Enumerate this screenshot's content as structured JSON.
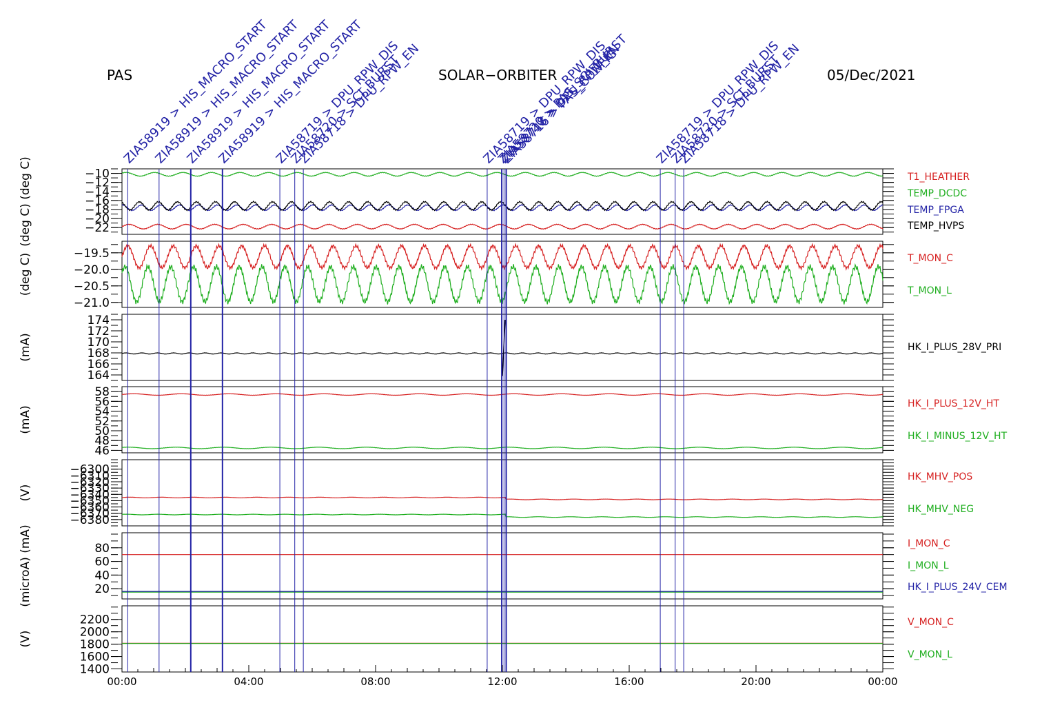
{
  "header": {
    "left": "PAS",
    "center": "SOLAR−ORBITER",
    "right": "05/Dec/2021"
  },
  "colors": {
    "red": "#d62020",
    "green": "#1fae1f",
    "blue": "#2323a6",
    "black": "#000000",
    "frame": "#000000"
  },
  "time_axis": {
    "hours_start": 0,
    "hours_end": 24,
    "tick_labels": [
      "00:00",
      "04:00",
      "08:00",
      "12:00",
      "16:00",
      "20:00",
      "00:00"
    ],
    "tick_hours": [
      0,
      4,
      8,
      12,
      16,
      20,
      24
    ]
  },
  "events": [
    {
      "t": 0.18,
      "label": "ZIA58919 > HIS_MACRO_START",
      "weight": 1
    },
    {
      "t": 1.17,
      "label": "ZIA58919 > HIS_MACRO_START",
      "weight": 1
    },
    {
      "t": 2.17,
      "label": "ZIA58919 > HIS_MACRO_START",
      "weight": 2
    },
    {
      "t": 3.17,
      "label": "ZIA58919 > HIS_MACRO_START",
      "weight": 2
    },
    {
      "t": 4.98,
      "label": "ZIA58719 > DPU_RPW_DIS",
      "weight": 1
    },
    {
      "t": 5.45,
      "label": "ZIA58720 > SCI_BURST",
      "weight": 1
    },
    {
      "t": 5.72,
      "label": "ZIA58718 > DPU_RPW_EN",
      "weight": 1
    },
    {
      "t": 11.52,
      "label": "ZIA58719 > DPU_RPW_DIS",
      "weight": 1
    },
    {
      "t": 11.98,
      "label": "ZIA58720 > PAS_SCI_BURST",
      "weight": 2
    },
    {
      "t": 12.05,
      "label": "ZIA58718 > DPU_RPW_EN",
      "weight": 1
    },
    {
      "t": 12.12,
      "label": "ZIA58716 > PAS_CONFIG",
      "weight": 2
    },
    {
      "t": 16.98,
      "label": "ZIA58719 > DPU_RPW_DIS",
      "weight": 1
    },
    {
      "t": 17.45,
      "label": "ZIA58720 > SCI_BURST",
      "weight": 1
    },
    {
      "t": 17.72,
      "label": "ZIA58718 > DPU_RPW_EN",
      "weight": 1
    }
  ],
  "chart_data": [
    {
      "type": "line",
      "ylabel": "(deg C) (deg C)",
      "ylim": [
        -23.5,
        -9
      ],
      "yticks": [
        -10,
        -12,
        -14,
        -16,
        -18,
        -20,
        -22
      ],
      "tick_labels": [
        "−10",
        "−12",
        "−14",
        "−16",
        "−18",
        "−20",
        "−22"
      ],
      "series": [
        {
          "name": "T1_HEATHER",
          "color": "red",
          "base": -21.8,
          "amp": 0.5,
          "period": 0.9
        },
        {
          "name": "TEMP_DCDC",
          "color": "green",
          "base": -10.2,
          "amp": 0.4,
          "period": 0.9
        },
        {
          "name": "TEMP_FPGA",
          "color": "blue",
          "base": -17.6,
          "amp": 0.6,
          "period": 0.6
        },
        {
          "name": "TEMP_HVPS",
          "color": "black",
          "base": -17.2,
          "amp": 0.9,
          "period": 0.6
        }
      ]
    },
    {
      "type": "line",
      "ylabel": "(deg C)",
      "ylim": [
        -21.15,
        -19.15
      ],
      "yticks": [
        -19.5,
        -20.0,
        -20.5,
        -21.0
      ],
      "tick_labels": [
        "−19.5",
        "−20.0",
        "−20.5",
        "−21.0"
      ],
      "series": [
        {
          "name": "T_MON_C",
          "color": "red",
          "base": -19.62,
          "amp": 0.33,
          "period": 0.72
        },
        {
          "name": "T_MON_L",
          "color": "green",
          "base": -20.45,
          "amp": 0.53,
          "period": 0.72
        }
      ]
    },
    {
      "type": "line",
      "ylabel": "(mA)",
      "ylim": [
        163,
        175
      ],
      "yticks": [
        164,
        166,
        168,
        170,
        172,
        174
      ],
      "tick_labels": [
        "164",
        "166",
        "168",
        "170",
        "172",
        "174"
      ],
      "series": [
        {
          "name": "HK_I_PLUS_28V_PRI",
          "color": "black",
          "base": 167.9,
          "amp": 0.1,
          "period": 0.5,
          "spike": [
            163.8,
            174.0
          ]
        }
      ]
    },
    {
      "type": "line",
      "ylabel": "(mA)",
      "ylim": [
        45.5,
        59
      ],
      "yticks": [
        46,
        48,
        50,
        52,
        54,
        56,
        58
      ],
      "tick_labels": [
        "46",
        "48",
        "50",
        "52",
        "54",
        "56",
        "58"
      ],
      "series": [
        {
          "name": "HK_I_PLUS_12V_HT",
          "color": "red",
          "base": 57.4,
          "amp": 0.15,
          "period": 1.5
        },
        {
          "name": "HK_I_MINUS_12V_HT",
          "color": "green",
          "base": 46.5,
          "amp": 0.15,
          "period": 1.5
        }
      ]
    },
    {
      "type": "line",
      "ylabel": "(V)",
      "ylim": [
        -6390,
        -6285
      ],
      "yticks": [
        -6300,
        -6310,
        -6320,
        -6330,
        -6340,
        -6350,
        -6360,
        -6370,
        -6380
      ],
      "tick_labels": [
        "−6300",
        "−6310",
        "−6320",
        "−6330",
        "−6340",
        "−6350",
        "−6360",
        "−6370",
        "−6380"
      ],
      "series": [
        {
          "name": "HK_MHV_POS",
          "color": "red",
          "base": -6345,
          "amp": 0.5,
          "period": 1.0,
          "after": -6348
        },
        {
          "name": "HK_MHV_NEG",
          "color": "green",
          "base": -6372,
          "amp": 0.5,
          "period": 1.0,
          "after": -6376
        }
      ]
    },
    {
      "type": "line",
      "ylabel": "(microA) (mA)",
      "ylim": [
        5,
        102
      ],
      "yticks": [
        20,
        40,
        60,
        80
      ],
      "tick_labels": [
        "20",
        "40",
        "60",
        "80"
      ],
      "series": [
        {
          "name": "I_MON_C",
          "color": "red",
          "base": 70,
          "amp": 0,
          "period": 1.0
        },
        {
          "name": "I_MON_L",
          "color": "green",
          "base": 15,
          "amp": 0,
          "period": 1.0
        },
        {
          "name": "HK_I_PLUS_24V_CEM",
          "color": "blue",
          "base": 16,
          "amp": 0,
          "period": 1.0
        }
      ]
    },
    {
      "type": "line",
      "ylabel": "(V)",
      "ylim": [
        1350,
        2420
      ],
      "yticks": [
        1400,
        1600,
        1800,
        2000,
        2200
      ],
      "tick_labels": [
        "1400",
        "1600",
        "1800",
        "2000",
        "2200"
      ],
      "series": [
        {
          "name": "V_MON_C",
          "color": "red",
          "base": 1815,
          "amp": 0,
          "period": 1.0
        },
        {
          "name": "V_MON_L",
          "color": "green",
          "base": 1810,
          "amp": 0,
          "period": 1.0
        }
      ]
    }
  ]
}
